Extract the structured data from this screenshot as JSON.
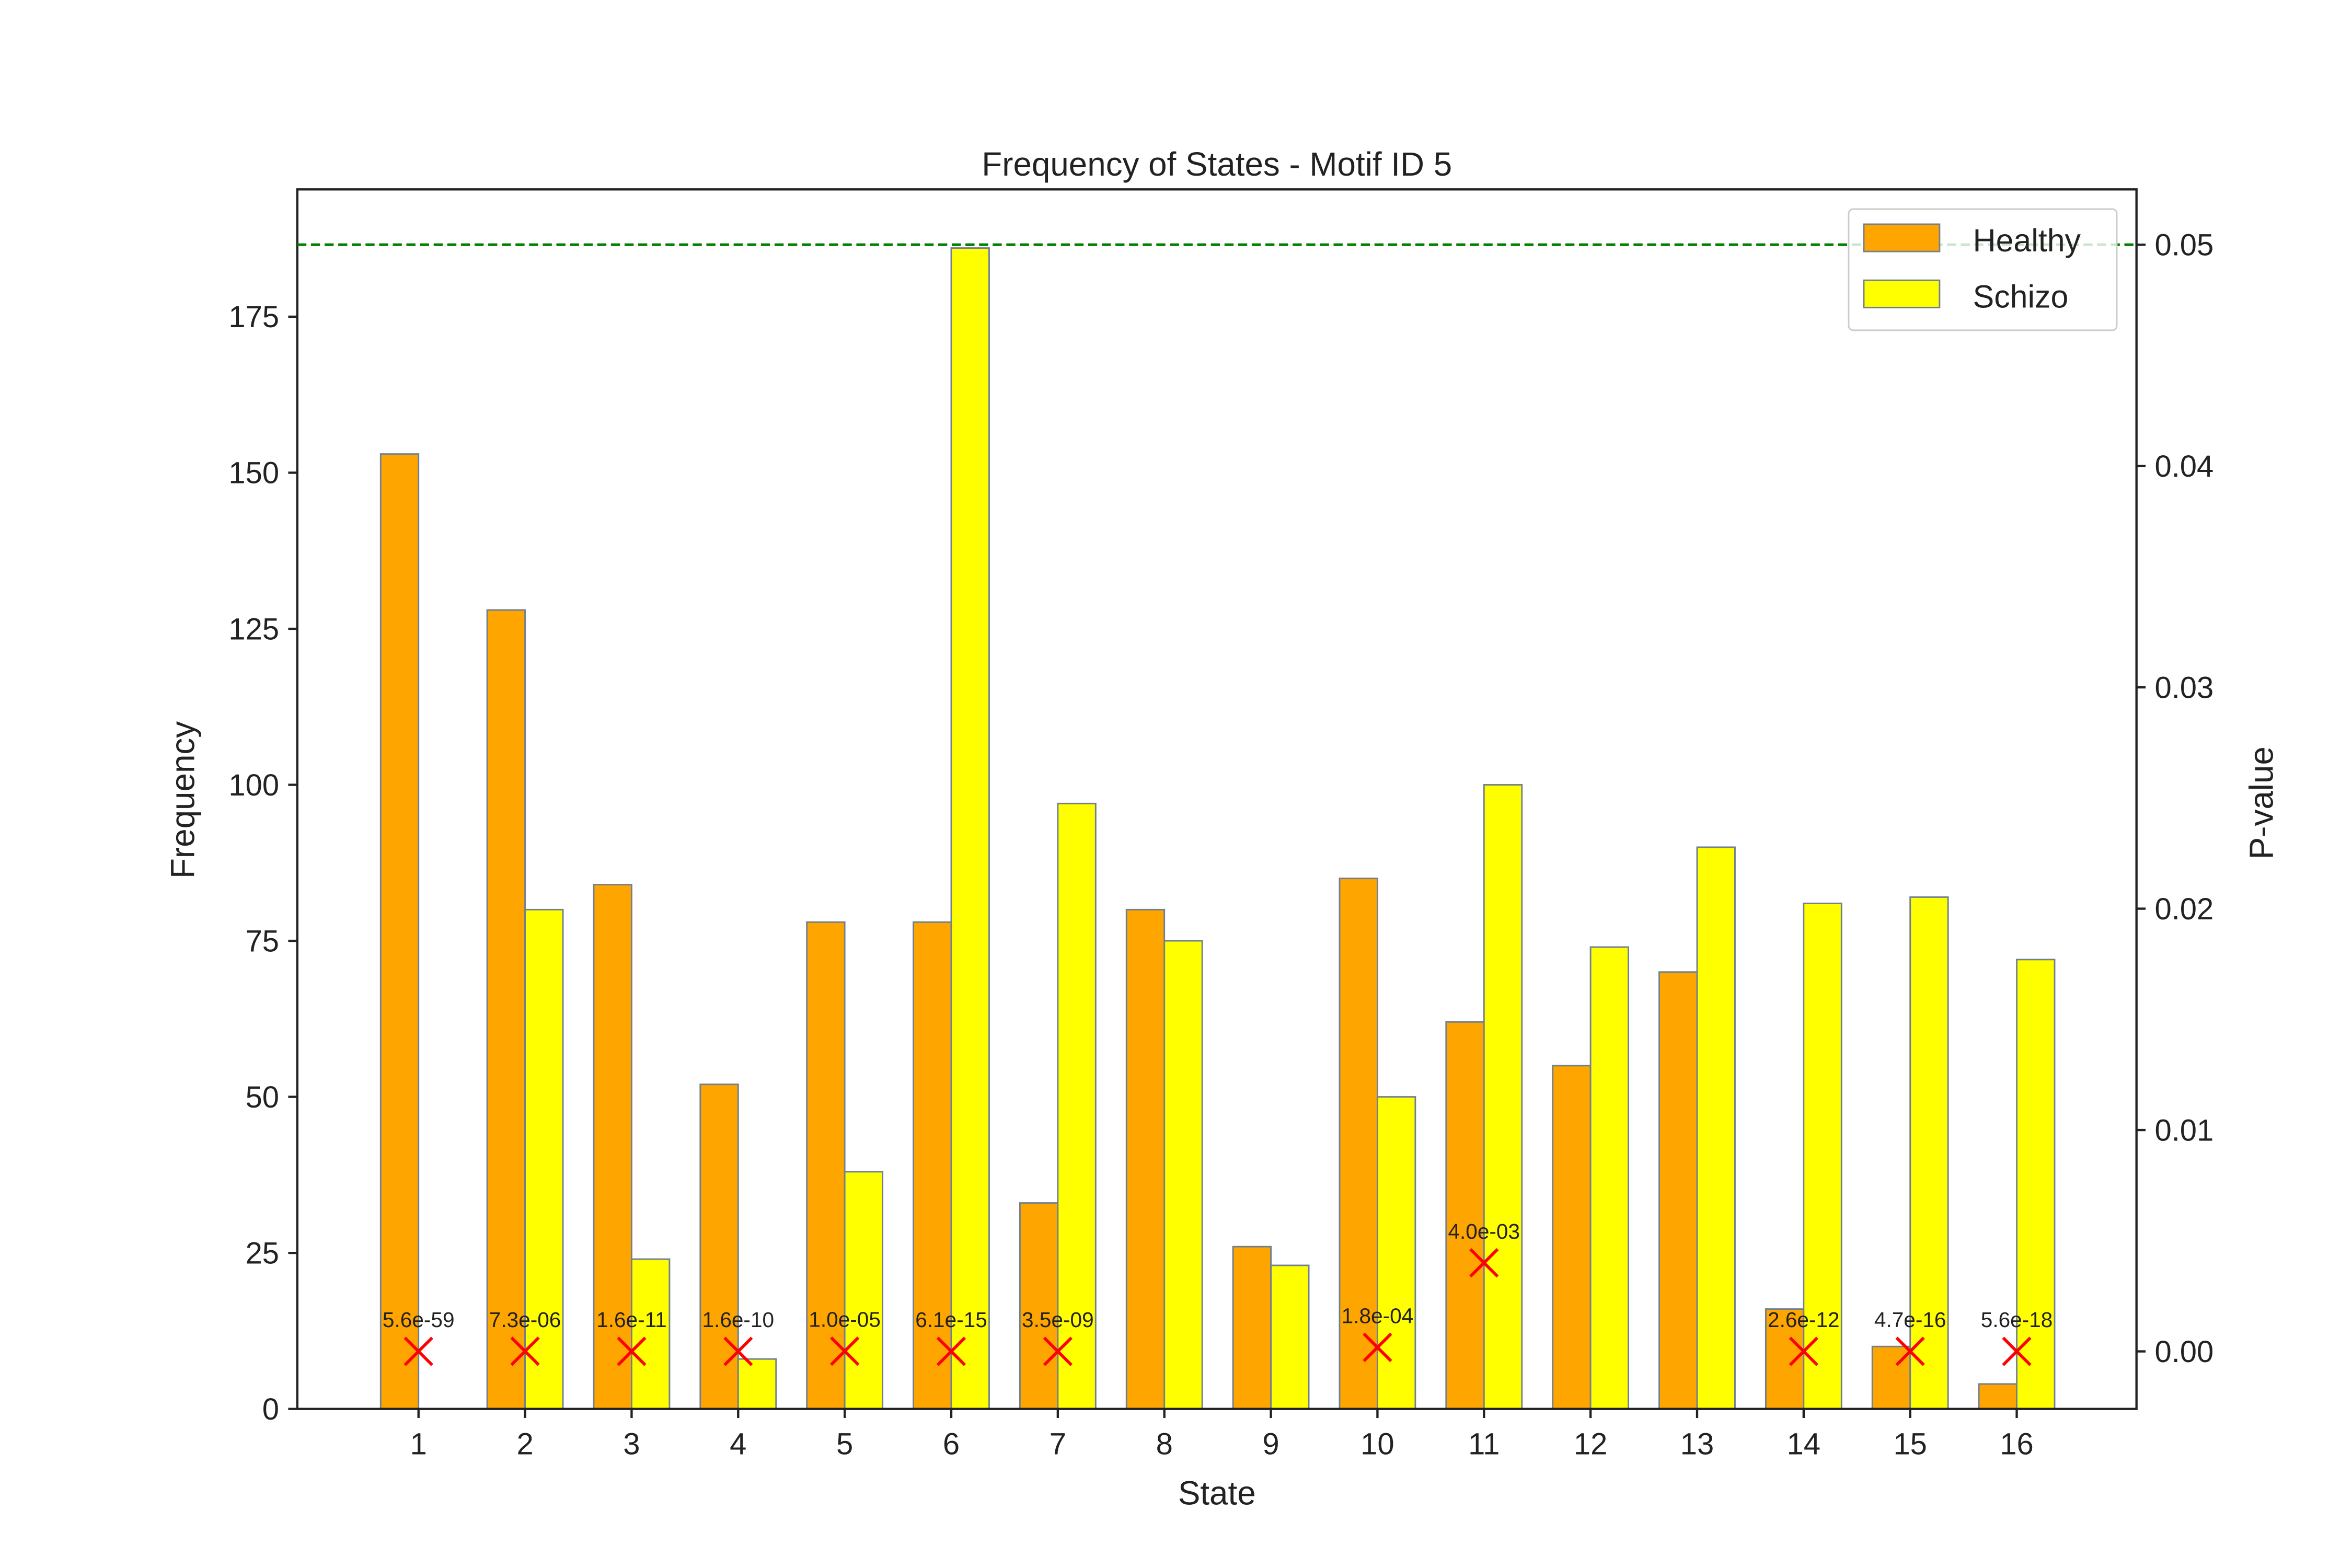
{
  "chart_data": {
    "type": "bar",
    "title": "Frequency of States - Motif ID 5",
    "xlabel": "State",
    "ylabel": "Frequency",
    "ylabel_right": "P-value",
    "categories": [
      "1",
      "2",
      "3",
      "4",
      "5",
      "6",
      "7",
      "8",
      "9",
      "10",
      "11",
      "12",
      "13",
      "14",
      "15",
      "16"
    ],
    "series": [
      {
        "name": "Healthy",
        "color": "#FFA500",
        "values": [
          153,
          128,
          84,
          52,
          78,
          78,
          33,
          80,
          26,
          85,
          62,
          55,
          70,
          16,
          10,
          4
        ]
      },
      {
        "name": "Schizo",
        "color": "#FFFF00",
        "values": [
          0,
          80,
          24,
          8,
          38,
          186,
          97,
          75,
          23,
          50,
          100,
          74,
          90,
          81,
          82,
          72
        ]
      }
    ],
    "pvalues": {
      "states": [
        1,
        2,
        3,
        4,
        5,
        6,
        7,
        10,
        11,
        14,
        15,
        16
      ],
      "values": [
        5.6e-59,
        7.3e-06,
        1.6e-11,
        1.6e-10,
        1e-05,
        6.1e-15,
        3.5e-09,
        0.00018,
        0.004,
        2.6e-12,
        4.7e-16,
        5.6e-18
      ],
      "labels": [
        "5.6e-59",
        "7.3e-06",
        "1.6e-11",
        "1.6e-10",
        "1.0e-05",
        "6.1e-15",
        "3.5e-09",
        "1.8e-04",
        "4.0e-03",
        "2.6e-12",
        "4.7e-16",
        "5.6e-18"
      ],
      "marker_color": "#FF0000"
    },
    "threshold": {
      "value": 0.05,
      "color": "#008000",
      "style": "dashed"
    },
    "ylim": [
      0,
      195.4
    ],
    "yticks": [
      0,
      25,
      50,
      75,
      100,
      125,
      150,
      175
    ],
    "ylim_right": [
      -0.0026,
      0.0525
    ],
    "yticks_right": [
      "0.00",
      "0.01",
      "0.02",
      "0.03",
      "0.04",
      "0.05"
    ],
    "legend": {
      "placement": "top-right",
      "entries": [
        "Healthy",
        "Schizo"
      ]
    },
    "grid": false
  }
}
